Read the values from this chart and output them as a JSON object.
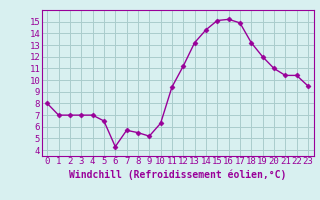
{
  "x": [
    0,
    1,
    2,
    3,
    4,
    5,
    6,
    7,
    8,
    9,
    10,
    11,
    12,
    13,
    14,
    15,
    16,
    17,
    18,
    19,
    20,
    21,
    22,
    23
  ],
  "y": [
    8.0,
    7.0,
    7.0,
    7.0,
    7.0,
    6.5,
    4.3,
    5.7,
    5.5,
    5.2,
    6.3,
    9.4,
    11.2,
    13.2,
    14.3,
    15.1,
    15.2,
    14.9,
    13.2,
    12.0,
    11.0,
    10.4,
    10.4,
    9.5
  ],
  "line_color": "#990099",
  "marker": "D",
  "marker_size": 2.5,
  "bg_color": "#d8f0f0",
  "grid_color": "#aacccc",
  "xlabel": "Windchill (Refroidissement éolien,°C)",
  "xlabel_fontsize": 7,
  "ylim": [
    3.5,
    16.0
  ],
  "xlim": [
    -0.5,
    23.5
  ],
  "yticks": [
    4,
    5,
    6,
    7,
    8,
    9,
    10,
    11,
    12,
    13,
    14,
    15
  ],
  "xticks": [
    0,
    1,
    2,
    3,
    4,
    5,
    6,
    7,
    8,
    9,
    10,
    11,
    12,
    13,
    14,
    15,
    16,
    17,
    18,
    19,
    20,
    21,
    22,
    23
  ],
  "tick_fontsize": 6.5,
  "linewidth": 1.0
}
